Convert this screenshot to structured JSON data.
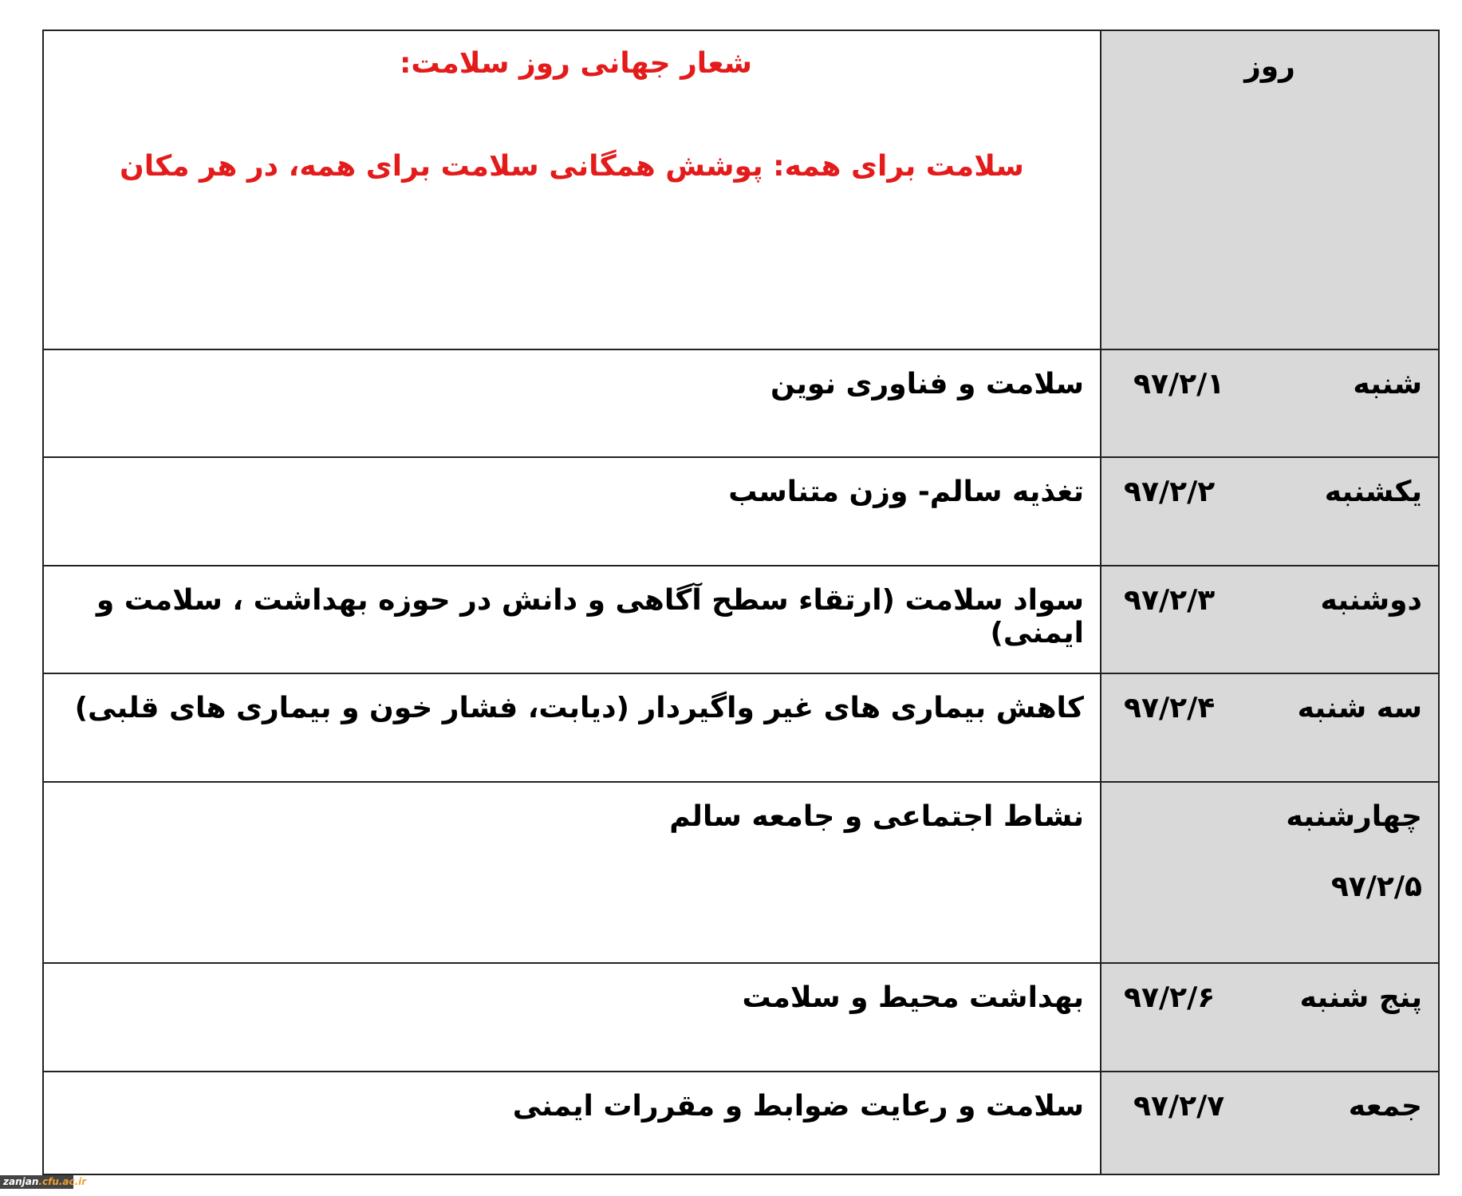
{
  "header": {
    "day_column": "روز",
    "slogan_title": "شعار جهانی روز سلامت:",
    "slogan": "سلامت برای همه: پوشش همگانی سلامت برای همه، در هر مکان"
  },
  "rows": [
    {
      "day": "شنبه",
      "date": "۹۷/۲/۱",
      "topic": "سلامت و فناوری نوین"
    },
    {
      "day": "یکشنبه",
      "date": "۹۷/۲/۲",
      "topic": "تغذیه سالم- وزن متناسب"
    },
    {
      "day": "دوشنبه",
      "date": "۹۷/۲/۳",
      "topic": "سواد سلامت (ارتقاء سطح آگاهی و دانش در حوزه بهداشت ، سلامت و ایمنی)"
    },
    {
      "day": "سه شنبه",
      "date": "۹۷/۲/۴",
      "topic": "کاهش بیماری های غیر واگیردار (دیابت، فشار خون و بیماری های قلبی)"
    },
    {
      "day": "چهارشنبه",
      "date": "۹۷/۲/۵",
      "topic": "نشاط اجتماعی و جامعه سالم"
    },
    {
      "day": "پنج شنبه",
      "date": "۹۷/۲/۶",
      "topic": "بهداشت محیط و سلامت"
    },
    {
      "day": "جمعه",
      "date": "۹۷/۲/۷",
      "topic": "سلامت و رعایت ضوابط و مقررات ایمنی"
    }
  ],
  "watermark": {
    "part1": "zanjan",
    "part2": ".cfu.ac.ir"
  },
  "colors": {
    "slogan": "#e31b1b",
    "day_column_bg": "#d9d9d9"
  }
}
